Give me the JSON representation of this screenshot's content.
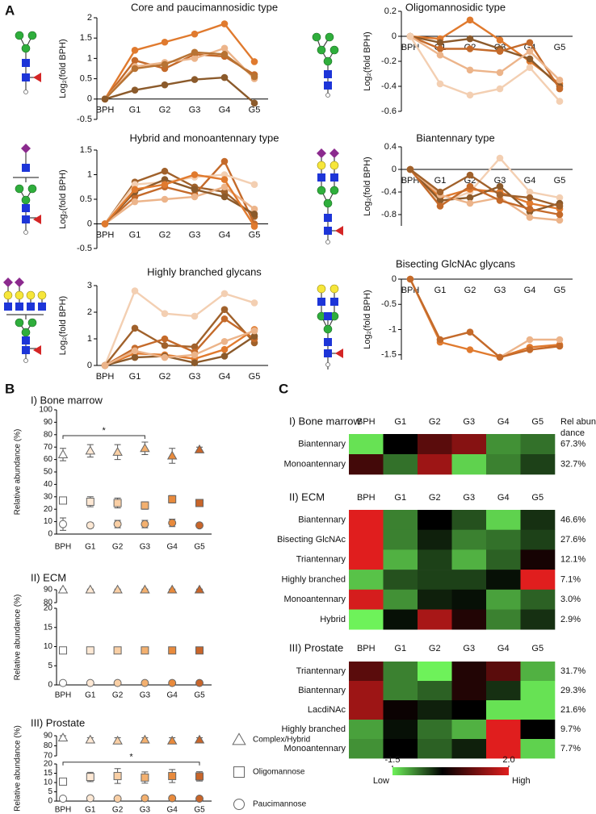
{
  "panel_labels": [
    "A",
    "B",
    "C"
  ],
  "panel_b_legend": [
    "Complex/Hybrid",
    "Oligomannose",
    "Paucimannose"
  ],
  "heatmap_scale": {
    "ticks": [
      -1.5,
      {
        "value": 2,
        "label": "2.0"
      }
    ],
    "range": [
      -1.5,
      2
    ],
    "low_label": "Low",
    "high_label": "High",
    "colors": [
      "#6ef25a",
      "#000000",
      "#e01e1e"
    ]
  },
  "chart_data": [
    {
      "type": "line",
      "title": "Core and paucimannosidic type",
      "y_label": "Log₂(fold BPH)",
      "categories": [
        "BPH",
        "G1",
        "G2",
        "G3",
        "G4",
        "G5"
      ],
      "ylim": [
        -0.5,
        2
      ],
      "yticks": [
        -0.5,
        0,
        0.5,
        1,
        1.5,
        2
      ],
      "series": [
        {
          "color": "#e07a2e",
          "values": [
            0,
            1.2,
            1.4,
            1.6,
            1.85,
            0.92
          ]
        },
        {
          "color": "#c46a2a",
          "values": [
            0,
            0.95,
            0.75,
            1.1,
            1.05,
            0.6
          ]
        },
        {
          "color": "#ecb48a",
          "values": [
            0,
            0.8,
            0.9,
            1.0,
            1.25,
            0.5
          ]
        },
        {
          "color": "#b87333",
          "values": [
            0,
            0.75,
            0.85,
            1.15,
            1.1,
            0.55
          ]
        },
        {
          "color": "#8b5a2b",
          "values": [
            0,
            0.22,
            0.35,
            0.48,
            0.53,
            -0.1
          ]
        }
      ]
    },
    {
      "type": "line",
      "title": "Oligomannosidic type",
      "y_label": "Log₂(fold BPH)",
      "categories": [
        "BPH",
        "G1",
        "G2",
        "G3",
        "G4",
        "G5"
      ],
      "ylim": [
        -0.6,
        0.2
      ],
      "yticks": [
        -0.6,
        -0.4,
        -0.2,
        0,
        0.2
      ],
      "series": [
        {
          "color": "#e07a2e",
          "values": [
            0,
            -0.02,
            0.13,
            -0.03,
            -0.2,
            -0.38
          ]
        },
        {
          "color": "#8b5a2b",
          "values": [
            0,
            -0.05,
            -0.02,
            -0.1,
            -0.18,
            -0.4
          ]
        },
        {
          "color": "#c46a2a",
          "values": [
            0,
            -0.1,
            -0.1,
            -0.12,
            -0.05,
            -0.42
          ]
        },
        {
          "color": "#ecb48a",
          "values": [
            0,
            -0.15,
            -0.27,
            -0.29,
            -0.12,
            -0.35
          ]
        },
        {
          "color": "#f3cfb2",
          "values": [
            0,
            -0.38,
            -0.47,
            -0.42,
            -0.25,
            -0.52
          ]
        }
      ]
    },
    {
      "type": "line",
      "title": "Hybrid and monoantennary type",
      "y_label": "Log₂(fold BPH)",
      "categories": [
        "BPH",
        "G1",
        "G2",
        "G3",
        "G4",
        "G5"
      ],
      "ylim": [
        -0.5,
        1.5
      ],
      "yticks": [
        -0.5,
        0,
        0.5,
        1,
        1.5
      ],
      "series": [
        {
          "color": "#a0612b",
          "values": [
            0,
            0.85,
            1.07,
            0.75,
            0.65,
            0.15
          ]
        },
        {
          "color": "#c46a2a",
          "values": [
            0,
            0.55,
            0.75,
            0.6,
            1.27,
            0.0
          ]
        },
        {
          "color": "#f3cfb2",
          "values": [
            0,
            0.8,
            0.85,
            0.95,
            1.0,
            0.8
          ]
        },
        {
          "color": "#ecb48a",
          "values": [
            0,
            0.45,
            0.5,
            0.55,
            0.75,
            0.3
          ]
        },
        {
          "color": "#8b5a2b",
          "values": [
            0,
            0.65,
            0.9,
            0.7,
            0.55,
            0.2
          ]
        },
        {
          "color": "#e07a2e",
          "values": [
            0,
            0.7,
            0.8,
            1.0,
            0.9,
            -0.05
          ]
        }
      ]
    },
    {
      "type": "line",
      "title": "Biantennary type",
      "y_label": "Log₂(fold BPH)",
      "categories": [
        "BPH",
        "G1",
        "G2",
        "G3",
        "G4",
        "G5"
      ],
      "ylim": [
        -1,
        0.4
      ],
      "yticks": [
        -0.8,
        -0.4,
        0,
        0.4
      ],
      "series": [
        {
          "color": "#f3cfb2",
          "values": [
            0,
            -0.6,
            -0.4,
            0.2,
            -0.4,
            -0.5
          ]
        },
        {
          "color": "#e07a2e",
          "values": [
            0,
            -0.5,
            -0.35,
            -0.4,
            -0.6,
            -0.7
          ]
        },
        {
          "color": "#8b5a2b",
          "values": [
            0,
            -0.55,
            -0.5,
            -0.3,
            -0.75,
            -0.6
          ]
        },
        {
          "color": "#ecb48a",
          "values": [
            0,
            -0.45,
            -0.6,
            -0.5,
            -0.85,
            -0.9
          ]
        },
        {
          "color": "#c46a2a",
          "values": [
            0,
            -0.65,
            -0.3,
            -0.55,
            -0.7,
            -0.8
          ]
        },
        {
          "color": "#a0612b",
          "values": [
            0,
            -0.4,
            -0.1,
            -0.45,
            -0.5,
            -0.65
          ]
        }
      ]
    },
    {
      "type": "line",
      "title": "Highly branched glycans",
      "y_label": "Log₂(fold BPH)",
      "categories": [
        "BPH",
        "G1",
        "G2",
        "G3",
        "G4",
        "G5"
      ],
      "ylim": [
        0,
        3
      ],
      "yticks": [
        0,
        1,
        2,
        3
      ],
      "series": [
        {
          "color": "#f3cfb2",
          "values": [
            0,
            2.8,
            1.95,
            1.85,
            2.7,
            2.35
          ]
        },
        {
          "color": "#a0612b",
          "values": [
            0,
            1.4,
            0.75,
            0.7,
            2.1,
            0.85
          ]
        },
        {
          "color": "#c46a2a",
          "values": [
            0,
            0.65,
            1.0,
            0.5,
            1.75,
            1.0
          ]
        },
        {
          "color": "#e07a2e",
          "values": [
            0,
            0.45,
            0.4,
            0.25,
            0.6,
            1.35
          ]
        },
        {
          "color": "#8b5a2b",
          "values": [
            0,
            0.3,
            0.35,
            0.1,
            0.35,
            1.1
          ]
        },
        {
          "color": "#ecb48a",
          "values": [
            0,
            0.55,
            0.3,
            0.4,
            0.9,
            1.3
          ]
        }
      ]
    },
    {
      "type": "line",
      "title": "Bisecting GlcNAc glycans",
      "y_label": "Log₂(fold BPH)",
      "categories": [
        "BPH",
        "G1",
        "G2",
        "G3",
        "G4",
        "G5"
      ],
      "ylim": [
        -1.6,
        0
      ],
      "yticks": [
        -1.5,
        -1,
        -0.5,
        0
      ],
      "series": [
        {
          "color": "#e07a2e",
          "values": [
            0,
            -1.25,
            -1.4,
            -1.55,
            -1.35,
            -1.3
          ]
        },
        {
          "color": "#ecb48a",
          "values": [
            0,
            -1.2,
            -1.05,
            -1.55,
            -1.2,
            -1.2
          ]
        },
        {
          "color": "#c46a2a",
          "values": [
            0,
            -1.2,
            -1.05,
            -1.55,
            -1.4,
            -1.33
          ]
        }
      ]
    },
    {
      "type": "dot",
      "title": "I) Bone marrow",
      "y_label": "Relative abundance (%)",
      "categories": [
        "BPH",
        "G1",
        "G2",
        "G3",
        "G4",
        "G5"
      ],
      "category_colors": [
        "#ffffff",
        "#fde8d4",
        "#f9cfa5",
        "#f3b06f",
        "#e88a3c",
        "#c8652a"
      ],
      "ylim": [
        0,
        100
      ],
      "yticks": [
        0,
        10,
        20,
        30,
        40,
        50,
        60,
        70,
        80,
        90,
        100
      ],
      "significance": {
        "label": "*",
        "between": [
          "BPH",
          "G3"
        ]
      },
      "series": [
        {
          "marker": "triangle",
          "values": [
            64,
            67,
            66,
            69,
            63,
            68
          ],
          "errors": [
            5,
            5,
            6,
            5,
            6,
            2
          ]
        },
        {
          "marker": "square",
          "values": [
            27,
            26,
            25,
            23,
            28,
            25
          ],
          "errors": [
            1,
            4,
            4,
            3,
            3,
            2
          ]
        },
        {
          "marker": "circle",
          "values": [
            8,
            7,
            8,
            8,
            9,
            7
          ],
          "errors": [
            5,
            2,
            3,
            3,
            3,
            1
          ]
        }
      ]
    },
    {
      "type": "dot",
      "title": "II) ECM",
      "y_label": "Relative abundance (%)",
      "categories": [
        "BPH",
        "G1",
        "G2",
        "G3",
        "G4",
        "G5"
      ],
      "category_colors": [
        "#ffffff",
        "#fde8d4",
        "#f9cfa5",
        "#f3b06f",
        "#e88a3c",
        "#c8652a"
      ],
      "ylim": [
        0,
        20
      ],
      "yticks": [
        0,
        5,
        10,
        15,
        20
      ],
      "ylim_upper": [
        80,
        90
      ],
      "yticks_upper": [
        80,
        90
      ],
      "series": [
        {
          "marker": "triangle",
          "values": [
            90,
            90,
            90,
            90,
            90,
            90
          ],
          "errors": [
            0.5,
            0.5,
            0.5,
            0.5,
            0.5,
            0.5
          ]
        },
        {
          "marker": "square",
          "values": [
            9,
            9,
            9,
            9,
            9,
            9
          ],
          "errors": [
            0.3,
            0.3,
            0.3,
            0.3,
            0.3,
            0.3
          ]
        },
        {
          "marker": "circle",
          "values": [
            0.5,
            0.5,
            0.5,
            0.5,
            0.5,
            0.5
          ],
          "errors": [
            0.2,
            0.2,
            0.2,
            0.2,
            0.2,
            0.2
          ]
        }
      ]
    },
    {
      "type": "dot",
      "title": "III) Prostate",
      "y_label": "Relative abundance (%)",
      "categories": [
        "BPH",
        "G1",
        "G2",
        "G3",
        "G4",
        "G5"
      ],
      "category_colors": [
        "#ffffff",
        "#fde8d4",
        "#f9cfa5",
        "#f3b06f",
        "#e88a3c",
        "#c8652a"
      ],
      "ylim": [
        0,
        20
      ],
      "yticks": [
        0,
        5,
        10,
        15,
        20
      ],
      "ylim_upper": [
        70,
        90
      ],
      "yticks_upper": [
        70,
        80,
        90
      ],
      "significance": {
        "label": "*",
        "between": [
          "BPH",
          "G5"
        ]
      },
      "series": [
        {
          "marker": "triangle",
          "values": [
            88,
            86,
            85,
            86,
            85,
            86
          ],
          "errors": [
            2,
            2,
            3,
            2,
            3,
            2
          ]
        },
        {
          "marker": "square",
          "values": [
            10.5,
            13,
            13.5,
            12.7,
            13.5,
            13.3
          ],
          "errors": [
            1.5,
            2.5,
            4,
            3,
            3.5,
            2.5
          ]
        },
        {
          "marker": "circle",
          "values": [
            1.3,
            1.5,
            1.3,
            1.5,
            1.5,
            1.3
          ],
          "errors": [
            1,
            0.8,
            0.3,
            0.8,
            0.8,
            0.5
          ]
        }
      ]
    },
    {
      "type": "heatmap",
      "title": "I) Bone marrow",
      "columns": [
        "BPH",
        "G1",
        "G2",
        "G3",
        "G4",
        "G5"
      ],
      "share_title": [
        "Rel abun-",
        "dance"
      ],
      "rows": [
        {
          "name": "Biantennary",
          "values": [
            -1.4,
            0,
            0.8,
            1.2,
            -0.9,
            -0.7
          ],
          "share": 67.3,
          "share_label": "67.3%"
        },
        {
          "name": "Monoantennary",
          "values": [
            0.6,
            -0.7,
            1.4,
            -1.3,
            -0.8,
            -0.4
          ],
          "share": 32.7,
          "share_label": "32.7%"
        }
      ]
    },
    {
      "type": "heatmap",
      "title": "II) ECM",
      "columns": [
        "BPH",
        "G1",
        "G2",
        "G3",
        "G4",
        "G5"
      ],
      "rows": [
        {
          "name": "Biantennary",
          "values": [
            2.0,
            -0.8,
            0,
            -0.5,
            -1.3,
            -0.3
          ],
          "share": 46.6,
          "share_label": "46.6%"
        },
        {
          "name": "Bisecting GlcNAc",
          "values": [
            2.0,
            -0.8,
            -0.2,
            -0.8,
            -0.7,
            -0.4
          ],
          "share": 27.6,
          "share_label": "27.6%"
        },
        {
          "name": "Triantennary",
          "values": [
            2.0,
            -1.1,
            -0.4,
            -1.1,
            -0.6,
            0.2
          ],
          "share": 12.1,
          "share_label": "12.1%"
        },
        {
          "name": "Highly branched",
          "values": [
            -1.2,
            -0.5,
            -0.4,
            -0.4,
            -0.1,
            2.0
          ],
          "share": 7.1,
          "share_label": "7.1%"
        },
        {
          "name": "Monoantennary",
          "values": [
            1.9,
            -0.9,
            -0.2,
            -0.1,
            -1.0,
            -0.6
          ],
          "share": 3.0,
          "share_label": "3.0%"
        },
        {
          "name": "Hybrid",
          "values": [
            -1.5,
            -0.1,
            1.5,
            0.3,
            -0.8,
            -0.3
          ],
          "share": 2.9,
          "share_label": "2.9%"
        }
      ]
    },
    {
      "type": "heatmap",
      "title": "III) Prostate",
      "columns": [
        "BPH",
        "G1",
        "G2",
        "G3",
        "G4",
        "G5"
      ],
      "rows": [
        {
          "name": "Triantennary",
          "values": [
            0.8,
            -0.8,
            -1.5,
            0.3,
            0.8,
            -1.1
          ],
          "share": 31.7,
          "share_label": "31.7%"
        },
        {
          "name": "Biantennary",
          "values": [
            1.4,
            -0.8,
            -0.6,
            0.3,
            -0.3,
            -1.4
          ],
          "share": 29.3,
          "share_label": "29.3%"
        },
        {
          "name": "LacdiNAc",
          "values": [
            1.4,
            0.1,
            -0.2,
            0,
            -1.4,
            -1.4
          ],
          "share": 21.6,
          "share_label": "21.6%"
        },
        {
          "name": "Highly branched",
          "values": [
            -1.0,
            -0.1,
            -0.7,
            -1.1,
            2.0,
            0
          ],
          "share": 9.7,
          "share_label": "9.7%"
        },
        {
          "name": "Monoantennary",
          "values": [
            -0.9,
            0,
            -0.6,
            -0.2,
            2.0,
            -1.3
          ],
          "share": 7.7,
          "share_label": "7.7%"
        }
      ]
    }
  ]
}
